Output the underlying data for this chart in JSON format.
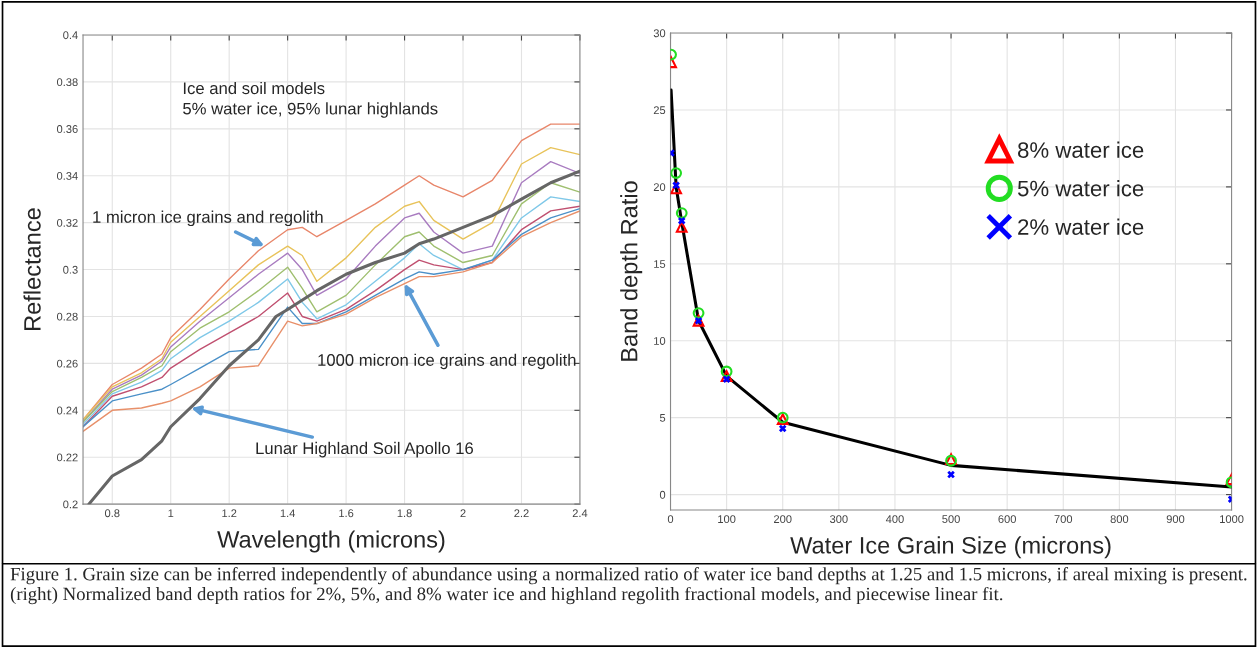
{
  "chart_data": [
    {
      "type": "line",
      "xlabel": "Wavelength (microns)",
      "ylabel": "Reflectance",
      "xlim": [
        0.7,
        2.4
      ],
      "ylim": [
        0.2,
        0.4
      ],
      "xticks": [
        0.8,
        1,
        1.2,
        1.4,
        1.6,
        1.8,
        2,
        2.2,
        2.4
      ],
      "yticks": [
        0.2,
        0.22,
        0.24,
        0.26,
        0.28,
        0.3,
        0.32,
        0.34,
        0.36,
        0.38,
        0.4
      ],
      "grid": true,
      "legend": false,
      "x": [
        0.7,
        0.8,
        0.9,
        0.97,
        1.0,
        1.1,
        1.2,
        1.3,
        1.4,
        1.45,
        1.5,
        1.6,
        1.7,
        1.8,
        1.85,
        1.9,
        2.0,
        2.1,
        2.2,
        2.3,
        2.4
      ],
      "series": [
        {
          "color": "#e8866a",
          "values": [
            0.236,
            0.251,
            0.258,
            0.264,
            0.271,
            0.283,
            0.296,
            0.308,
            0.317,
            0.318,
            0.314,
            0.321,
            0.328,
            0.336,
            0.34,
            0.336,
            0.331,
            0.338,
            0.355,
            0.362,
            0.362
          ]
        },
        {
          "color": "#e8c35a",
          "values": [
            0.236,
            0.25,
            0.256,
            0.262,
            0.269,
            0.28,
            0.291,
            0.302,
            0.31,
            0.306,
            0.295,
            0.305,
            0.318,
            0.327,
            0.329,
            0.321,
            0.313,
            0.32,
            0.345,
            0.352,
            0.349
          ]
        },
        {
          "color": "#a97cc0",
          "values": [
            0.235,
            0.249,
            0.255,
            0.261,
            0.267,
            0.278,
            0.288,
            0.298,
            0.307,
            0.3,
            0.289,
            0.296,
            0.31,
            0.322,
            0.324,
            0.316,
            0.307,
            0.31,
            0.337,
            0.346,
            0.341
          ]
        },
        {
          "color": "#9fbf6f",
          "values": [
            0.235,
            0.248,
            0.254,
            0.259,
            0.265,
            0.275,
            0.282,
            0.291,
            0.301,
            0.292,
            0.282,
            0.289,
            0.302,
            0.314,
            0.316,
            0.31,
            0.303,
            0.306,
            0.328,
            0.337,
            0.333
          ]
        },
        {
          "color": "#7fc8e8",
          "values": [
            0.234,
            0.247,
            0.252,
            0.257,
            0.262,
            0.271,
            0.278,
            0.286,
            0.296,
            0.286,
            0.279,
            0.285,
            0.295,
            0.305,
            0.311,
            0.306,
            0.3,
            0.304,
            0.322,
            0.331,
            0.329
          ]
        },
        {
          "color": "#c05070",
          "values": [
            0.233,
            0.246,
            0.25,
            0.254,
            0.258,
            0.266,
            0.273,
            0.28,
            0.29,
            0.28,
            0.278,
            0.283,
            0.291,
            0.3,
            0.304,
            0.302,
            0.3,
            0.303,
            0.317,
            0.325,
            0.327
          ]
        },
        {
          "color": "#4a90c8",
          "values": [
            0.233,
            0.244,
            0.247,
            0.249,
            0.251,
            0.258,
            0.265,
            0.266,
            0.284,
            0.277,
            0.277,
            0.282,
            0.289,
            0.296,
            0.299,
            0.298,
            0.3,
            0.304,
            0.315,
            0.322,
            0.326
          ]
        },
        {
          "color": "#e8906a",
          "values": [
            0.231,
            0.24,
            0.241,
            0.243,
            0.244,
            0.25,
            0.258,
            0.259,
            0.278,
            0.276,
            0.277,
            0.281,
            0.288,
            0.294,
            0.297,
            0.297,
            0.299,
            0.303,
            0.314,
            0.32,
            0.325
          ]
        },
        {
          "color": "#666666",
          "x": [
            0.72,
            0.8,
            0.9,
            0.97,
            1.0,
            1.1,
            1.2,
            1.3,
            1.36,
            1.4,
            1.5,
            1.6,
            1.7,
            1.8,
            1.85,
            1.9,
            2.0,
            2.1,
            2.2,
            2.3,
            2.4
          ],
          "values": [
            0.2,
            0.212,
            0.219,
            0.227,
            0.233,
            0.245,
            0.259,
            0.27,
            0.28,
            0.283,
            0.291,
            0.298,
            0.303,
            0.307,
            0.311,
            0.313,
            0.318,
            0.323,
            0.33,
            0.337,
            0.342
          ]
        }
      ],
      "annotations": [
        "Ice and soil models\n5% water ice, 95% lunar highlands",
        {
          "text": "1 micron ice grains and regolith",
          "x": 1.32,
          "y": 0.31
        },
        {
          "text": "1000 micron ice grains and regolith",
          "x": 1.8,
          "y": 0.294
        },
        {
          "text": "Lunar Highland Soil Apollo 16",
          "x": 1.07,
          "y": 0.241
        }
      ]
    },
    {
      "type": "scatter",
      "xlabel": "Water Ice Grain Size (microns)",
      "ylabel": "Band depth Ratio",
      "xlim": [
        0,
        1000
      ],
      "ylim": [
        -1,
        30
      ],
      "xticks": [
        0,
        100,
        200,
        300,
        400,
        500,
        600,
        700,
        800,
        900,
        1000
      ],
      "yticks": [
        0,
        5,
        10,
        15,
        20,
        25,
        30
      ],
      "grid": true,
      "legend": "right",
      "x": [
        1,
        10,
        20,
        50,
        100,
        200,
        500,
        1000
      ],
      "series": [
        {
          "name": "8% water ice",
          "color": "#ff0000",
          "marker": "triangle",
          "values": [
            28.1,
            19.9,
            17.4,
            11.3,
            7.7,
            4.9,
            2.3,
            1.0
          ]
        },
        {
          "name": "5% water ice",
          "color": "#22dd22",
          "marker": "circle",
          "values": [
            28.6,
            20.9,
            18.3,
            11.8,
            8.0,
            5.0,
            2.2,
            0.8
          ]
        },
        {
          "name": "2% water ice",
          "color": "#0000ff",
          "marker": "cross",
          "values": [
            22.2,
            20.1,
            17.8,
            11.3,
            7.5,
            4.3,
            1.3,
            -0.3
          ]
        },
        {
          "type": "line",
          "color": "#000000",
          "values": [
            26.3,
            20.0,
            17.7,
            11.3,
            7.7,
            4.7,
            1.9,
            0.5
          ]
        }
      ],
      "annotations": [
        "Figure 1. Grain size can be inferred independently of abundance using a normalized ratio of water ice band depths at 1.25 and 1.5 microns, if areal mixing is present. (right) Normalized band depth ratios for 2%, 5%, and 8% water ice and highland regolith fractional models, and piecewise linear fit."
      ]
    }
  ]
}
